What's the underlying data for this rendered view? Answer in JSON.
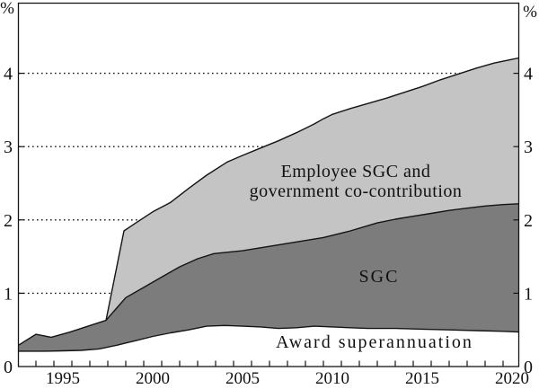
{
  "chart_data": {
    "type": "area",
    "stacked": true,
    "title": "",
    "unit": "%",
    "unit_label_left": "%",
    "unit_label_right": "%",
    "x_axis": {
      "labeled_ticks": [
        1995,
        2000,
        2005,
        2010,
        2015,
        2020
      ],
      "minor_tick_interval_years": 1,
      "range": [
        1992.5,
        2020.4
      ],
      "label_type": "fiscal-year"
    },
    "y_axis": {
      "tick_values": [
        0,
        1,
        2,
        3,
        4
      ],
      "tick_labels": [
        "0",
        "1",
        "2",
        "3",
        "4"
      ],
      "gridline_values": [
        1,
        2,
        3,
        4
      ],
      "gridlines_dotted": true,
      "range": [
        0,
        4.95
      ],
      "unit": "%",
      "labels_on_both_sides": true
    },
    "series": [
      {
        "name": "Award superannuation",
        "label": "Award superannuation",
        "fill": "#ffffff",
        "cumulative_top": [
          [
            1992.5,
            0.21
          ],
          [
            1993,
            0.21
          ],
          [
            1994,
            0.21
          ],
          [
            1995,
            0.215
          ],
          [
            1996,
            0.22
          ],
          [
            1997,
            0.24
          ],
          [
            1997.4,
            0.26
          ],
          [
            1998,
            0.29
          ],
          [
            1999,
            0.35
          ],
          [
            2000,
            0.41
          ],
          [
            2001,
            0.46
          ],
          [
            2002,
            0.5
          ],
          [
            2003,
            0.55
          ],
          [
            2004,
            0.56
          ],
          [
            2005,
            0.55
          ],
          [
            2006,
            0.54
          ],
          [
            2007,
            0.52
          ],
          [
            2008,
            0.53
          ],
          [
            2009,
            0.55
          ],
          [
            2010,
            0.54
          ],
          [
            2011,
            0.53
          ],
          [
            2012,
            0.52
          ],
          [
            2013.5,
            0.52
          ],
          [
            2015,
            0.51
          ],
          [
            2016.5,
            0.5
          ],
          [
            2018,
            0.49
          ],
          [
            2019.5,
            0.48
          ],
          [
            2020.4,
            0.47
          ]
        ]
      },
      {
        "name": "SGC",
        "label": "SGC",
        "fill": "#7c7c7c",
        "cumulative_top": [
          [
            1992.5,
            0.29
          ],
          [
            1993.5,
            0.44
          ],
          [
            1994.35,
            0.4
          ],
          [
            1995.4,
            0.47
          ],
          [
            1996.4,
            0.55
          ],
          [
            1997.4,
            0.63
          ],
          [
            1998.5,
            0.94
          ],
          [
            1999.5,
            1.08
          ],
          [
            2000.5,
            1.22
          ],
          [
            2001.5,
            1.36
          ],
          [
            2002.5,
            1.47
          ],
          [
            2003.4,
            1.54
          ],
          [
            2005,
            1.58
          ],
          [
            2006.5,
            1.64
          ],
          [
            2008,
            1.7
          ],
          [
            2009.5,
            1.76
          ],
          [
            2011,
            1.85
          ],
          [
            2012.5,
            1.96
          ],
          [
            2013.5,
            2.01
          ],
          [
            2014.5,
            2.05
          ],
          [
            2015.5,
            2.09
          ],
          [
            2016.5,
            2.13
          ],
          [
            2017.5,
            2.16
          ],
          [
            2018.5,
            2.19
          ],
          [
            2019.5,
            2.21
          ],
          [
            2020.4,
            2.22
          ]
        ]
      },
      {
        "name": "Employee SGC and government co-contribution",
        "label_lines": [
          "Employee SGC and",
          "government co-contribution"
        ],
        "fill": "#c4c4c4",
        "starts_year": 1997.4,
        "cumulative_top": [
          [
            1997.4,
            0.63
          ],
          [
            1998.4,
            1.85
          ],
          [
            1999,
            1.95
          ],
          [
            2000,
            2.11
          ],
          [
            2001,
            2.24
          ],
          [
            2002,
            2.43
          ],
          [
            2003,
            2.61
          ],
          [
            2004.15,
            2.79
          ],
          [
            2005,
            2.88
          ],
          [
            2006,
            2.98
          ],
          [
            2007,
            3.08
          ],
          [
            2008,
            3.19
          ],
          [
            2009,
            3.31
          ],
          [
            2009.5,
            3.38
          ],
          [
            2010,
            3.44
          ],
          [
            2011,
            3.52
          ],
          [
            2012,
            3.59
          ],
          [
            2013,
            3.66
          ],
          [
            2014,
            3.74
          ],
          [
            2015,
            3.82
          ],
          [
            2016,
            3.91
          ],
          [
            2017,
            3.99
          ],
          [
            2018,
            4.07
          ],
          [
            2019,
            4.14
          ],
          [
            2020,
            4.19
          ],
          [
            2020.4,
            4.21
          ]
        ]
      }
    ],
    "line_color": "#141414",
    "frame_color": "#141414",
    "background": "#ffffff"
  }
}
